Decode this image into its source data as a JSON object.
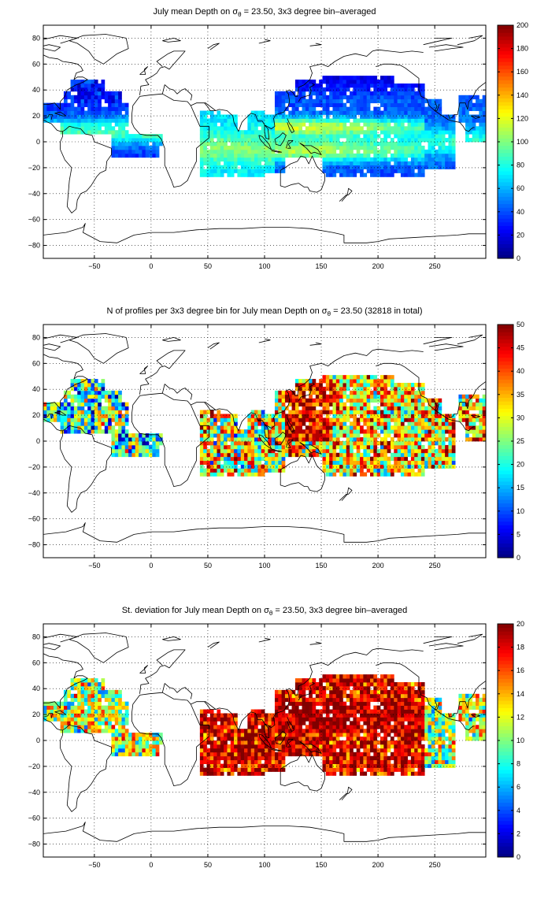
{
  "chart_data": [
    {
      "type": "heatmap",
      "title_prefix": "July mean Depth on",
      "title_sigma": "σ",
      "title_sub": "θ",
      "title_suffix": " = 23.50, 3x3 degree bin–averaged",
      "xlim": [
        -95,
        295
      ],
      "ylim": [
        -90,
        90
      ],
      "xticks": [
        -50,
        0,
        50,
        100,
        150,
        200,
        250
      ],
      "yticks": [
        -80,
        -60,
        -40,
        -20,
        0,
        20,
        40,
        60,
        80
      ],
      "grid": true,
      "colormap": "jet",
      "colorbar": {
        "min": 0,
        "max": 200,
        "ticks": [
          0,
          20,
          40,
          60,
          80,
          100,
          120,
          140,
          160,
          180,
          200
        ]
      },
      "field": "depth"
    },
    {
      "type": "heatmap",
      "title_prefix": "N of profiles per 3x3 degree bin for July mean Depth on",
      "title_sigma": "σ",
      "title_sub": "θ",
      "title_suffix": " = 23.50 (32818 in total)",
      "xlim": [
        -95,
        295
      ],
      "ylim": [
        -90,
        90
      ],
      "xticks": [
        -50,
        0,
        50,
        100,
        150,
        200,
        250
      ],
      "yticks": [
        -80,
        -60,
        -40,
        -20,
        0,
        20,
        40,
        60,
        80
      ],
      "grid": true,
      "colormap": "jet",
      "colorbar": {
        "min": 0,
        "max": 50,
        "ticks": [
          0,
          5,
          10,
          15,
          20,
          25,
          30,
          35,
          40,
          45,
          50
        ]
      },
      "field": "count"
    },
    {
      "type": "heatmap",
      "title_prefix": "St. deviation for July mean Depth on",
      "title_sigma": "σ",
      "title_sub": "θ",
      "title_suffix": " = 23.50, 3x3 degree bin–averaged",
      "xlim": [
        -95,
        295
      ],
      "ylim": [
        -90,
        90
      ],
      "xticks": [
        -50,
        0,
        50,
        100,
        150,
        200,
        250
      ],
      "yticks": [
        -80,
        -60,
        -40,
        -20,
        0,
        20,
        40,
        60,
        80
      ],
      "grid": true,
      "colormap": "jet",
      "colorbar": {
        "min": 0,
        "max": 20,
        "ticks": [
          0,
          2,
          4,
          6,
          8,
          10,
          12,
          14,
          16,
          18,
          20
        ]
      },
      "field": "std"
    }
  ]
}
